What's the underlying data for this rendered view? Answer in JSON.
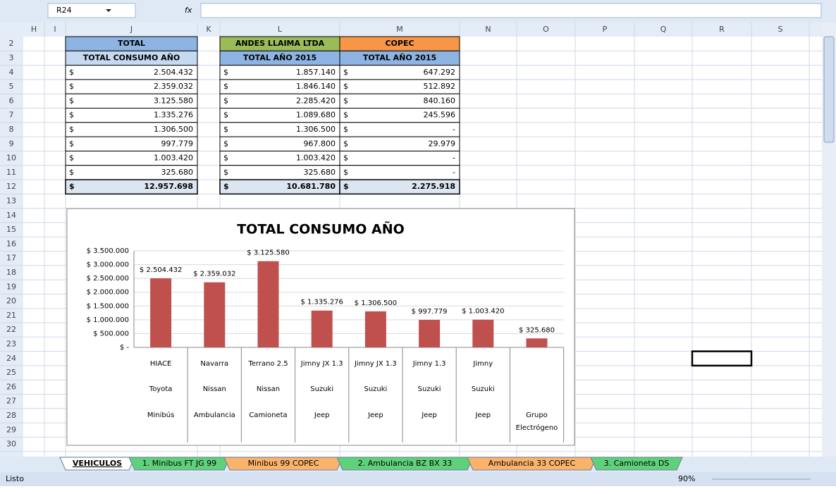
{
  "name_box": "R24",
  "formula_icon": "fx",
  "columns": [
    "H",
    "I",
    "J",
    "K",
    "L",
    "M",
    "N",
    "O",
    "P",
    "Q",
    "R",
    "S"
  ],
  "rows": [
    2,
    3,
    4,
    5,
    6,
    7,
    8,
    9,
    10,
    11,
    12,
    13,
    14,
    15,
    16,
    17,
    18,
    19,
    20,
    21,
    22,
    23,
    24,
    25,
    26,
    27,
    28,
    29,
    30
  ],
  "currency": "$",
  "total_table": {
    "header": "TOTAL",
    "subheader": "TOTAL CONSUMO AÑO",
    "amounts": [
      "2.504.432",
      "2.359.032",
      "3.125.580",
      "1.335.276",
      "1.306.500",
      "997.779",
      "1.003.420",
      "325.680"
    ],
    "total": "12.957.698"
  },
  "andes_table": {
    "header": "ANDES LLAIMA LTDA",
    "subheader": "TOTAL AÑO 2015",
    "amounts": [
      "1.857.140",
      "1.846.140",
      "2.285.420",
      "1.089.680",
      "1.306.500",
      "967.800",
      "1.003.420",
      "325.680"
    ],
    "total": "10.681.780"
  },
  "copec_table": {
    "header": "COPEC",
    "subheader": "TOTAL AÑO 2015",
    "amounts": [
      "647.292",
      "512.892",
      "840.160",
      "245.596",
      "-",
      "29.979",
      "-",
      "-"
    ],
    "total": "2.275.918"
  },
  "chart_data": {
    "type": "bar",
    "title": "TOTAL CONSUMO AÑO",
    "categories": [
      [
        "HIACE",
        "Toyota",
        "Minibús"
      ],
      [
        "Navarra",
        "Nissan",
        "Ambulancia"
      ],
      [
        "Terrano 2.5",
        "Nissan",
        "Camioneta"
      ],
      [
        "Jimny JX 1.3",
        "Suzuki",
        "Jeep"
      ],
      [
        "Jimny JX 1.3",
        "Suzuki",
        "Jeep"
      ],
      [
        "Jimny 1.3",
        "Suzuki",
        "Jeep"
      ],
      [
        "Jimny",
        "Suzuki",
        "Jeep"
      ],
      [
        null,
        null,
        "Grupo Electrógeno"
      ]
    ],
    "values": [
      2504432,
      2359032,
      3125580,
      1335276,
      1306500,
      997779,
      1003420,
      325680
    ],
    "value_labels": [
      "$ 2.504.432",
      "$ 2.359.032",
      "$ 3.125.580",
      "$ 1.335.276",
      "$ 1.306.500",
      "$ 997.779",
      "$ 1.003.420",
      "$ 325.680"
    ],
    "color": "#c0504d",
    "ylim": [
      0,
      3500000
    ],
    "yticks": [
      {
        "value": 0,
        "label": "$ -"
      },
      {
        "value": 500000,
        "label": "$ 500.000"
      },
      {
        "value": 1000000,
        "label": "$ 1.000.000"
      },
      {
        "value": 1500000,
        "label": "$ 1.500.000"
      },
      {
        "value": 2000000,
        "label": "$ 2.000.000"
      },
      {
        "value": 2500000,
        "label": "$ 2.500.000"
      },
      {
        "value": 3000000,
        "label": "$ 3.000.000"
      },
      {
        "value": 3500000,
        "label": "$ 3.500.000"
      }
    ],
    "grid": true
  },
  "sheet_tabs": [
    "VEHICULOS",
    "1. Minibus FT JG 99",
    "Minibus 99 COPEC",
    "2. Ambulancia BZ BX 33",
    "Ambulancia 33 COPEC",
    "3. Camioneta DS"
  ],
  "status": "Listo",
  "zoom": "90%"
}
